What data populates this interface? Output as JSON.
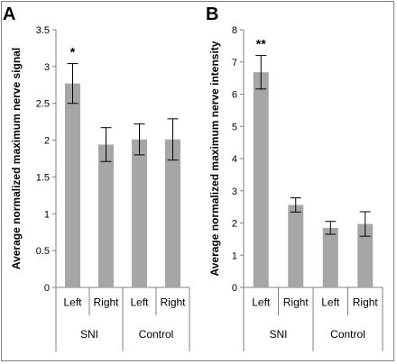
{
  "chart_data": [
    {
      "panel_label": "A",
      "type": "bar",
      "ylabel": "Average normalized maximum nerve signal",
      "ylim": [
        0,
        3.5
      ],
      "yticks": [
        "0",
        "0.5",
        "1",
        "1.5",
        "2",
        "2.5",
        "3",
        "3.5"
      ],
      "categories": [
        "Left",
        "Right",
        "Left",
        "Right"
      ],
      "groups": [
        {
          "label": "SNI",
          "members": [
            0,
            1
          ]
        },
        {
          "label": "Control",
          "members": [
            2,
            3
          ]
        }
      ],
      "values": [
        2.77,
        1.94,
        2.01,
        2.01
      ],
      "errors": [
        0.27,
        0.23,
        0.21,
        0.28
      ],
      "annotations": [
        "*",
        "",
        "",
        ""
      ],
      "bar_color": "#a6a6a6",
      "grid": false
    },
    {
      "panel_label": "B",
      "type": "bar",
      "ylabel": "Average normalized maximum nerve intensity",
      "ylim": [
        0,
        8
      ],
      "yticks": [
        "0",
        "1",
        "2",
        "3",
        "4",
        "5",
        "6",
        "7",
        "8"
      ],
      "categories": [
        "Left",
        "Right",
        "Left",
        "Right"
      ],
      "groups": [
        {
          "label": "SNI",
          "members": [
            0,
            1
          ]
        },
        {
          "label": "Control",
          "members": [
            2,
            3
          ]
        }
      ],
      "values": [
        6.68,
        2.56,
        1.85,
        1.97
      ],
      "errors": [
        0.52,
        0.22,
        0.2,
        0.38
      ],
      "annotations": [
        "**",
        "",
        "",
        ""
      ],
      "bar_color": "#a6a6a6",
      "grid": false
    }
  ]
}
